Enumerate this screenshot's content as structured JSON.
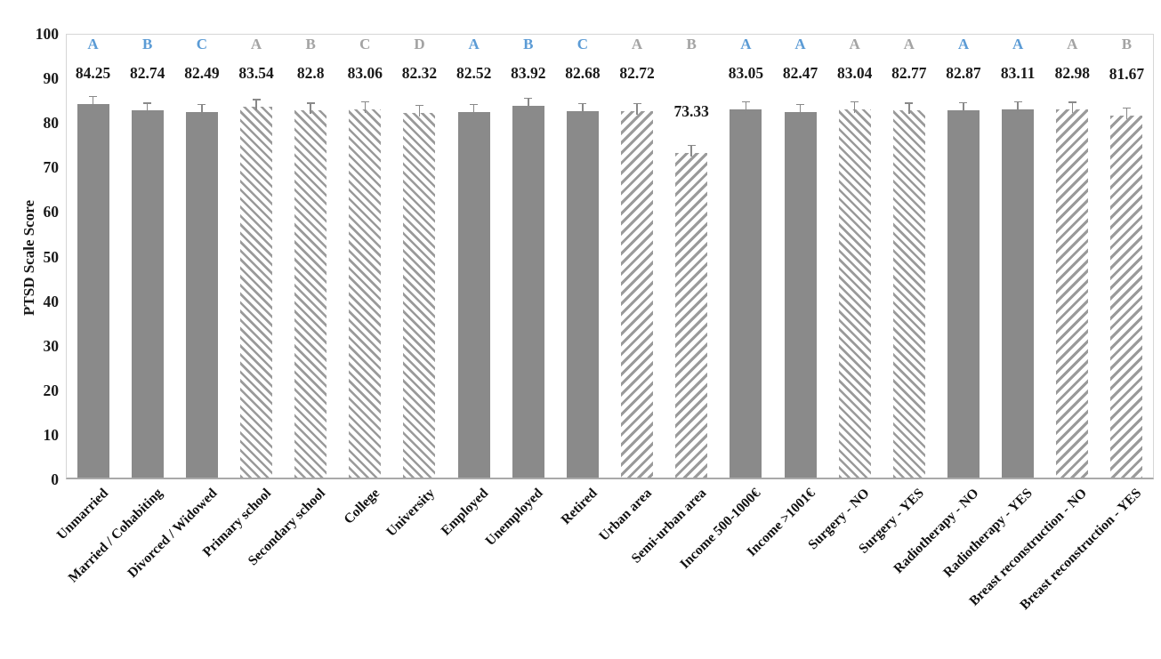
{
  "chart_data": {
    "type": "bar",
    "title": "",
    "xlabel": "",
    "ylabel": "PTSD Scale Score",
    "ylim": [
      0,
      100
    ],
    "yticks": [
      0,
      10,
      20,
      30,
      40,
      50,
      60,
      70,
      80,
      90,
      100
    ],
    "grid": false,
    "legend": null,
    "categories": [
      "Unmarried",
      "Married / Cohabiting",
      "Divorced / Widowed",
      "Primary school",
      "Secondary school",
      "College",
      "University",
      "Employed",
      "Unemployed",
      "Retired",
      "Urban area",
      "Semi-urban area",
      "Income 500-1000€",
      "Income >1001€",
      "Surgery - NO",
      "Surgery - YES",
      "Radiotherapy - NO",
      "Radiotherapy - YES",
      "Breast reconstruction - NO",
      "Breast reconstruction - YES"
    ],
    "values": [
      84.25,
      82.74,
      82.49,
      83.54,
      82.8,
      83.06,
      82.32,
      82.52,
      83.92,
      82.68,
      82.72,
      73.33,
      83.05,
      82.47,
      83.04,
      82.77,
      82.87,
      83.11,
      82.98,
      81.67
    ],
    "value_labels": [
      "84.25",
      "82.74",
      "82.49",
      "83.54",
      "82.8",
      "83.06",
      "82.32",
      "82.52",
      "83.92",
      "82.68",
      "82.72",
      "73.33",
      "83.05",
      "82.47",
      "83.04",
      "82.77",
      "82.87",
      "83.11",
      "82.98",
      "81.67"
    ],
    "significance_letters": [
      "A",
      "B",
      "C",
      "A",
      "B",
      "C",
      "D",
      "A",
      "B",
      "C",
      "A",
      "B",
      "A",
      "A",
      "A",
      "A",
      "A",
      "A",
      "A",
      "B"
    ],
    "letter_colors": [
      "blue",
      "blue",
      "blue",
      "gray",
      "gray",
      "gray",
      "gray",
      "blue",
      "blue",
      "blue",
      "gray",
      "gray",
      "blue",
      "blue",
      "gray",
      "gray",
      "blue",
      "blue",
      "gray",
      "gray"
    ],
    "bar_styles": [
      "solid",
      "solid",
      "solid",
      "hatch_back",
      "hatch_back",
      "hatch_back",
      "hatch_back",
      "solid",
      "solid",
      "solid",
      "hatch_fwd",
      "hatch_fwd",
      "solid",
      "solid",
      "hatch_back",
      "hatch_back",
      "solid",
      "solid",
      "hatch_fwd",
      "hatch_fwd"
    ],
    "error_bars": {
      "visible": true,
      "approx_size": 1.8
    },
    "colors": {
      "bar_solid": "#8a8a8a",
      "hatch_stripe": "#9a9a9a",
      "hatch_bg": "#ffffff",
      "letter_blue": "#5b9bd5",
      "letter_gray": "#a3a3a3",
      "value_text": "#1a1a1a",
      "axis_border": "#c9c9c9",
      "error_bar": "#898989",
      "tick_text": "#1a1a1a"
    }
  }
}
